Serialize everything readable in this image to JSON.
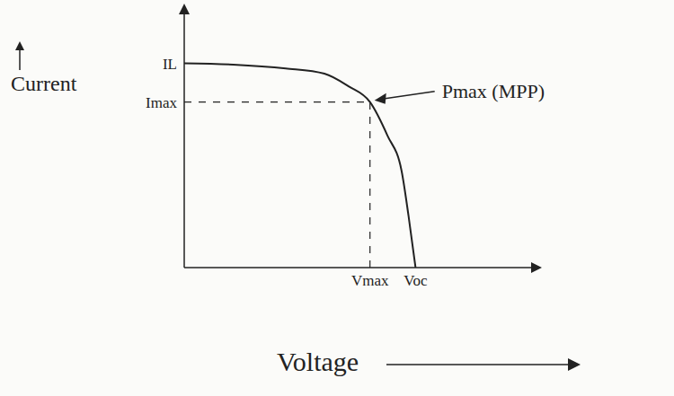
{
  "chart_data": {
    "type": "line",
    "x_label": "Voltage",
    "y_label": "Current",
    "x": [
      0,
      0.14,
      0.29,
      0.4,
      0.47,
      0.53,
      0.58,
      0.62,
      0.64,
      0.66
    ],
    "values": [
      0.79,
      0.785,
      0.77,
      0.75,
      0.7,
      0.64,
      0.51,
      0.375,
      0.2,
      0
    ],
    "color": "#222222",
    "xlim": [
      0,
      1
    ],
    "ylim": [
      0,
      1
    ],
    "xticks": [
      {
        "value": 0.53,
        "label": "Vmax"
      },
      {
        "value": 0.66,
        "label": "Voc"
      }
    ],
    "yticks": [
      {
        "value": 0.79,
        "label": "IL"
      },
      {
        "value": 0.64,
        "label": "Imax"
      }
    ],
    "annotations": [
      {
        "text": "Pmax (MPP)",
        "x": 0.53,
        "y": 0.64
      }
    ],
    "grid": false
  }
}
